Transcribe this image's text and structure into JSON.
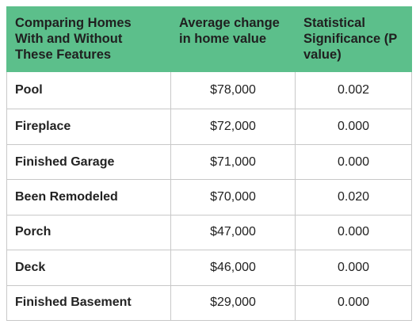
{
  "table": {
    "headers": [
      "Comparing Homes With and Without These Features",
      "Average change in home value",
      "Statistical Significance (P value)"
    ],
    "rows": [
      {
        "feature": "Pool",
        "value": "$78,000",
        "pval": "0.002"
      },
      {
        "feature": "Fireplace",
        "value": "$72,000",
        "pval": "0.000"
      },
      {
        "feature": "Finished Garage",
        "value": "$71,000",
        "pval": "0.000"
      },
      {
        "feature": "Been Remodeled",
        "value": "$70,000",
        "pval": "0.020"
      },
      {
        "feature": "Porch",
        "value": "$47,000",
        "pval": "0.000"
      },
      {
        "feature": "Deck",
        "value": "$46,000",
        "pval": "0.000"
      },
      {
        "feature": "Finished Basement",
        "value": "$29,000",
        "pval": "0.000"
      }
    ]
  },
  "colors": {
    "header_bg": "#5cbf8b",
    "border": "#c8c8c8",
    "text": "#222222"
  }
}
